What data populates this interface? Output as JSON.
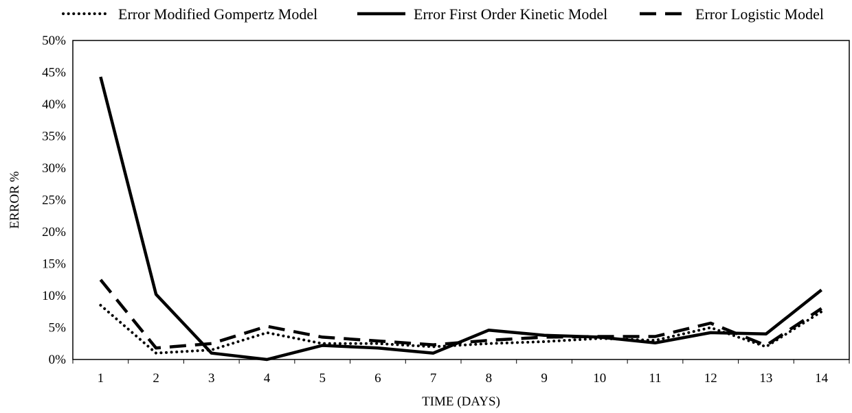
{
  "chart_data": {
    "type": "line",
    "xlabel": "TIME (DAYS)",
    "ylabel": "ERROR %",
    "categories": [
      "1",
      "2",
      "3",
      "4",
      "5",
      "6",
      "7",
      "8",
      "9",
      "10",
      "11",
      "12",
      "13",
      "14"
    ],
    "ylim": [
      0,
      50
    ],
    "yticks": [
      "0%",
      "5%",
      "10%",
      "15%",
      "20%",
      "25%",
      "30%",
      "35%",
      "40%",
      "45%",
      "50%"
    ],
    "grid": false,
    "legend_position": "top",
    "series": [
      {
        "name": "Error Modified Gompertz Model",
        "style": "dotted",
        "color": "#000000",
        "values": [
          8.5,
          1.0,
          1.5,
          4.2,
          2.5,
          2.5,
          2.0,
          2.5,
          2.8,
          3.3,
          3.0,
          5.0,
          2.0,
          7.5
        ]
      },
      {
        "name": "Error First Order Kinetic Model",
        "style": "solid",
        "color": "#000000",
        "values": [
          44.3,
          10.2,
          1.0,
          0.0,
          2.2,
          1.8,
          1.0,
          4.6,
          3.8,
          3.5,
          2.6,
          4.2,
          4.0,
          10.9
        ]
      },
      {
        "name": "Error Logistic Model",
        "style": "dashed",
        "color": "#000000",
        "values": [
          12.5,
          1.8,
          2.5,
          5.2,
          3.5,
          2.9,
          2.3,
          3.0,
          3.5,
          3.6,
          3.6,
          5.7,
          2.2,
          8.0
        ]
      }
    ]
  }
}
